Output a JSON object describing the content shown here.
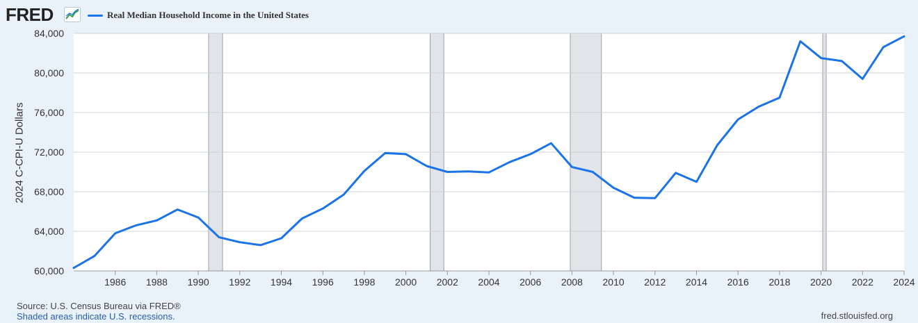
{
  "header": {
    "logo_text": "FRED",
    "legend_label": "Real Median Household Income in the United States"
  },
  "footer": {
    "source": "Source: U.S. Census Bureau via FRED®",
    "recession_note": "Shaded areas indicate U.S. recessions.",
    "url": "fred.stlouisfed.org"
  },
  "colors": {
    "line": "#1a73e8",
    "background": "#e9f1f9",
    "plot": "#ffffff",
    "recession": "#e1e5ea",
    "grid": "#cfd3d8"
  },
  "chart_data": {
    "type": "line",
    "title": "",
    "xlabel": "",
    "ylabel": "2024 C-CPI-U Dollars",
    "xlim": [
      1984,
      2024
    ],
    "ylim": [
      60000,
      84000
    ],
    "x_ticks": [
      1986,
      1988,
      1990,
      1992,
      1994,
      1996,
      1998,
      2000,
      2002,
      2004,
      2006,
      2008,
      2010,
      2012,
      2014,
      2016,
      2018,
      2020,
      2022,
      2024
    ],
    "y_ticks": [
      60000,
      64000,
      68000,
      72000,
      76000,
      80000,
      84000
    ],
    "y_tick_labels": [
      "60,000",
      "64,000",
      "68,000",
      "72,000",
      "76,000",
      "80,000",
      "84,000"
    ],
    "grid": true,
    "legend_position": "top-left",
    "recessions": [
      [
        1990.5,
        1991.17
      ],
      [
        2001.17,
        2001.83
      ],
      [
        2007.92,
        2009.42
      ],
      [
        2020.08,
        2020.25
      ]
    ],
    "series": [
      {
        "name": "Real Median Household Income in the United States",
        "x": [
          1984,
          1985,
          1986,
          1987,
          1988,
          1989,
          1990,
          1991,
          1992,
          1993,
          1994,
          1995,
          1996,
          1997,
          1998,
          1999,
          2000,
          2001,
          2002,
          2003,
          2004,
          2005,
          2006,
          2007,
          2008,
          2009,
          2010,
          2011,
          2012,
          2013,
          2014,
          2015,
          2016,
          2017,
          2018,
          2019,
          2020,
          2021,
          2022,
          2023,
          2024
        ],
        "values": [
          60300,
          61500,
          63800,
          64600,
          65100,
          66200,
          65400,
          63400,
          62900,
          62600,
          63300,
          65300,
          66300,
          67700,
          70100,
          71900,
          71800,
          70600,
          70000,
          70050,
          69950,
          71000,
          71800,
          72900,
          70500,
          70000,
          68400,
          67400,
          67350,
          69900,
          69000,
          72700,
          75300,
          76600,
          77500,
          83200,
          81500,
          81200,
          79400,
          82600,
          83700
        ]
      }
    ]
  }
}
